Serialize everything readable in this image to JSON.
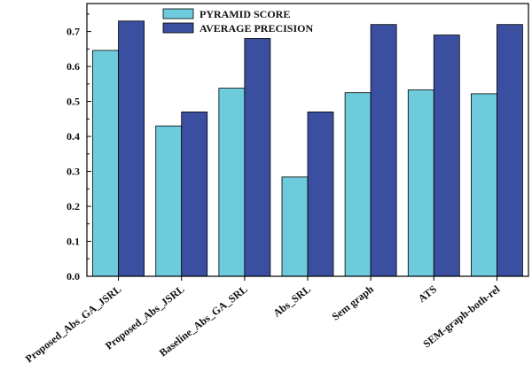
{
  "chart_data": {
    "type": "bar",
    "categories": [
      "Proposed_Abs_GA_JSRL",
      "Proposed_Abs_JSRL",
      "Baseline_Abs_GA_SRL",
      "Abs_SRL",
      "Sem graph",
      "ATS",
      "SEM-graph-both-rel"
    ],
    "series": [
      {
        "name": "PYRAMID SCORE",
        "color": "#6dcbdc",
        "values": [
          0.646,
          0.43,
          0.538,
          0.284,
          0.525,
          0.533,
          0.522
        ]
      },
      {
        "name": "AVERAGE PRECISION",
        "color": "#3a4fa0",
        "values": [
          0.73,
          0.47,
          0.68,
          0.47,
          0.72,
          0.69,
          0.72
        ]
      }
    ],
    "yticks": [
      "0.0",
      "0.1",
      "0.2",
      "0.3",
      "0.4",
      "0.5",
      "0.6",
      "0.7"
    ],
    "ylim": [
      0,
      0.78
    ],
    "legend_position": "top-center",
    "grid": false
  }
}
